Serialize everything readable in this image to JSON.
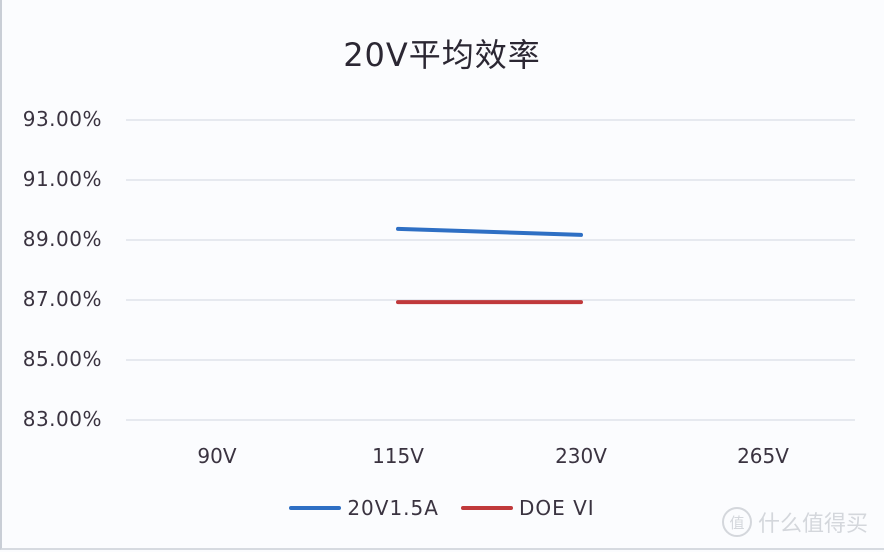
{
  "chart_data": {
    "type": "line",
    "title": "20V平均效率",
    "xlabel": "",
    "ylabel": "",
    "categories": [
      "90V",
      "115V",
      "230V",
      "265V"
    ],
    "series": [
      {
        "name": "20V1.5A",
        "color": "#2e6fc4",
        "values": [
          null,
          89.37,
          89.17,
          null
        ]
      },
      {
        "name": "DOE VI",
        "color": "#c0393b",
        "values": [
          null,
          86.93,
          86.93,
          null
        ]
      }
    ],
    "ylim": [
      83,
      93
    ],
    "yticks": [
      "93.00%",
      "91.00%",
      "89.00%",
      "87.00%",
      "85.00%",
      "83.00%"
    ],
    "grid": true,
    "legend_position": "bottom"
  },
  "title": "20V平均效率",
  "yaxis": {
    "ticks": [
      "93.00%",
      "91.00%",
      "89.00%",
      "87.00%",
      "85.00%",
      "83.00%"
    ]
  },
  "xaxis": {
    "ticks": [
      "90V",
      "115V",
      "230V",
      "265V"
    ]
  },
  "legend": {
    "items": [
      {
        "label": "20V1.5A",
        "color": "#2e6fc4"
      },
      {
        "label": "DOE VI",
        "color": "#c0393b"
      }
    ]
  },
  "watermark": {
    "badge": "值",
    "text": "什么值得买"
  }
}
